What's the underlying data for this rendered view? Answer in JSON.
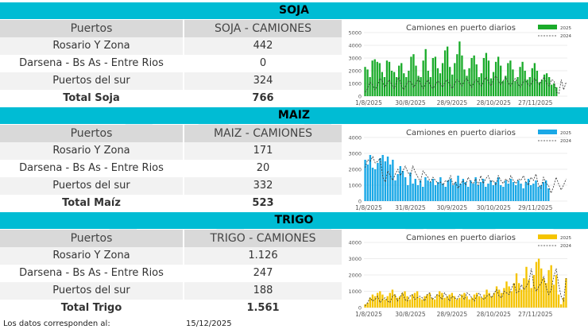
{
  "colors": {
    "band": "#00bcd4",
    "soja": "#1aab2a",
    "maiz": "#1aa8e6",
    "trigo": "#f5c400",
    "line2024": "#333333"
  },
  "sections": [
    {
      "title": "SOJA",
      "col_left": "Puertos",
      "col_right": "SOJA - CAMIONES",
      "rows": [
        {
          "label": "Rosario Y Zona",
          "value": "442"
        },
        {
          "label": "Darsena - Bs As - Entre Rios",
          "value": "0"
        },
        {
          "label": "Puertos del sur",
          "value": "324"
        }
      ],
      "total_label": "Total Soja",
      "total_value": "766"
    },
    {
      "title": "MAIZ",
      "col_left": "Puertos",
      "col_right": "MAIZ - CAMIONES",
      "rows": [
        {
          "label": "Rosario Y Zona",
          "value": "171"
        },
        {
          "label": "Darsena - Bs As - Entre Rios",
          "value": "20"
        },
        {
          "label": "Puertos del sur",
          "value": "332"
        }
      ],
      "total_label": "Total Maíz",
      "total_value": "523"
    },
    {
      "title": "TRIGO",
      "col_left": "Puertos",
      "col_right": "TRIGO - CAMIONES",
      "rows": [
        {
          "label": "Rosario Y Zona",
          "value": "1.126"
        },
        {
          "label": "Darsena - Bs As - Entre Rios",
          "value": "247"
        },
        {
          "label": "Puertos del sur",
          "value": "188"
        }
      ],
      "total_label": "Total Trigo",
      "total_value": "1.561"
    }
  ],
  "footer": {
    "label": "Los datos corresponden al:",
    "date": "15/12/2025"
  },
  "chart_data": [
    {
      "type": "bar",
      "title": "Camiones en puerto diarios",
      "x_ticks": [
        "1/8/2025",
        "30/8/2025",
        "28/9/2025",
        "28/10/2025",
        "27/11/2025"
      ],
      "y_ticks": [
        0,
        1000,
        2000,
        3000,
        4000,
        5000
      ],
      "ylim": [
        0,
        5000
      ],
      "grid": true,
      "legend": "top-right",
      "series": [
        {
          "name": "2025",
          "kind": "bar",
          "color": "#1aab2a",
          "values": [
            2300,
            2100,
            1500,
            2800,
            2900,
            2700,
            2600,
            1900,
            1500,
            2800,
            2700,
            2000,
            1900,
            1500,
            2400,
            2600,
            1800,
            1500,
            2000,
            3100,
            3300,
            2400,
            1600,
            1500,
            2800,
            3700,
            2000,
            1500,
            3000,
            3100,
            2200,
            1800,
            2600,
            3600,
            3900,
            2300,
            1700,
            2600,
            3300,
            4300,
            3200,
            2100,
            1600,
            2200,
            3000,
            3200,
            2500,
            1500,
            1800,
            3000,
            3400,
            2800,
            1400,
            1900,
            2700,
            3100,
            2400,
            1200,
            1600,
            2600,
            2800,
            2100,
            1200,
            1500,
            2300,
            2700,
            2000,
            1300,
            1500,
            2200,
            2600,
            2000,
            1100,
            1300,
            1700,
            1800,
            1500,
            900,
            1000,
            700
          ]
        },
        {
          "name": "2024",
          "kind": "line",
          "color": "#333333",
          "values": [
            300,
            600,
            1100,
            900,
            500,
            800,
            1400,
            1200,
            700,
            1000,
            1300,
            900,
            600,
            1100,
            1500,
            800,
            500,
            900,
            1200,
            1100,
            700,
            1000,
            1400,
            900,
            600,
            1000,
            1300,
            800,
            600,
            900,
            1200,
            1000,
            700,
            1100,
            1300,
            900,
            600,
            1000,
            1300,
            1100,
            800,
            1200,
            1400,
            1000,
            700,
            1100,
            1300,
            1000,
            800,
            1200,
            1500,
            1100,
            800,
            1300,
            1600,
            1200,
            900,
            1200,
            1500,
            1100,
            800,
            1100,
            1400,
            1000,
            700,
            1000,
            1300,
            1000,
            800,
            1100,
            1400,
            1100,
            900,
            1300,
            1500,
            1000,
            800,
            1300,
            1200,
            300,
            200,
            1300,
            500,
            1100
          ]
        }
      ]
    },
    {
      "type": "bar",
      "title": "Camiones en puerto diarios",
      "x_ticks": [
        "1/8/2025",
        "31/8/2025",
        "30/9/2025",
        "30/10/2025",
        "29/11/2025"
      ],
      "y_ticks": [
        0,
        1000,
        2000,
        3000,
        4000
      ],
      "ylim": [
        0,
        4000
      ],
      "grid": true,
      "legend": "top-right",
      "series": [
        {
          "name": "2025",
          "kind": "bar",
          "color": "#1aa8e6",
          "values": [
            2600,
            2300,
            2900,
            2100,
            2000,
            2400,
            2700,
            2900,
            2500,
            2800,
            2300,
            2600,
            1300,
            1700,
            2200,
            1900,
            1500,
            1000,
            1800,
            1100,
            1400,
            1000,
            1300,
            900,
            1500,
            1300,
            1200,
            1400,
            1000,
            1200,
            1500,
            1100,
            900,
            1300,
            1400,
            1000,
            1200,
            1600,
            1100,
            1400,
            1200,
            900,
            1300,
            1100,
            1500,
            1000,
            1200,
            1400,
            900,
            1100,
            1300,
            1000,
            1200,
            1500,
            1000,
            900,
            1300,
            1100,
            1400,
            1200,
            1000,
            1300,
            1100,
            800,
            1200,
            1400,
            1000,
            1100,
            1300,
            900,
            1000,
            1200,
            1300,
            800
          ]
        },
        {
          "name": "2024",
          "kind": "line",
          "color": "#333333",
          "values": [
            2100,
            2600,
            2500,
            2800,
            2400,
            2500,
            2700,
            1500,
            1200,
            1900,
            1600,
            1300,
            1700,
            2000,
            1600,
            1900,
            2200,
            1800,
            1600,
            2200,
            1800,
            1500,
            1200,
            1900,
            1700,
            1500,
            1200,
            1500,
            1300,
            1100,
            1200,
            1000,
            1300,
            1200,
            1600,
            1000,
            1200,
            800,
            1100,
            1300,
            1000,
            1500,
            1200,
            1100,
            1400,
            1000,
            1600,
            1100,
            1400,
            1600,
            1200,
            1300,
            1000,
            1600,
            1300,
            1100,
            1400,
            1200,
            1600,
            1300,
            1100,
            1400,
            1300,
            1600,
            1200,
            1000,
            1500,
            1300,
            1700,
            1000,
            800,
            1500,
            1100,
            1000,
            500,
            900,
            1500,
            1100,
            700,
            1000,
            1400
          ]
        }
      ]
    },
    {
      "type": "bar",
      "title": "Camiones en puerto diarios",
      "x_ticks": [
        "1/8/2025",
        "30/8/2025",
        "28/9/2025",
        "28/10/2025",
        "27/11/2025"
      ],
      "y_ticks": [
        0,
        1000,
        2000,
        3000,
        4000
      ],
      "ylim": [
        0,
        4000
      ],
      "grid": true,
      "legend": "top-right",
      "series": [
        {
          "name": "2025",
          "kind": "bar",
          "color": "#f5c400",
          "values": [
            200,
            300,
            600,
            800,
            700,
            900,
            1000,
            800,
            500,
            700,
            900,
            1100,
            800,
            600,
            700,
            900,
            1000,
            700,
            500,
            800,
            900,
            1000,
            600,
            500,
            700,
            800,
            900,
            600,
            500,
            800,
            1000,
            900,
            600,
            700,
            800,
            900,
            700,
            500,
            600,
            800,
            900,
            700,
            500,
            600,
            800,
            900,
            700,
            600,
            800,
            1100,
            900,
            700,
            900,
            1300,
            1100,
            900,
            1200,
            1600,
            1300,
            1000,
            1500,
            2100,
            1500,
            1100,
            1800,
            2500,
            1700,
            1200,
            2000,
            2800,
            3000,
            2400,
            1800,
            1500,
            2300,
            2600,
            1400,
            2000,
            800,
            200,
            600,
            1800
          ]
        },
        {
          "name": "2024",
          "kind": "line",
          "color": "#333333",
          "values": [
            100,
            300,
            600,
            400,
            500,
            700,
            300,
            500,
            600,
            400,
            300,
            700,
            800,
            400,
            600,
            900,
            500,
            400,
            700,
            800,
            500,
            600,
            700,
            600,
            400,
            800,
            900,
            500,
            600,
            800,
            700,
            500,
            900,
            700,
            400,
            700,
            600,
            500,
            800,
            700,
            500,
            900,
            800,
            600,
            400,
            700,
            900,
            600,
            500,
            700,
            800,
            600,
            900,
            1100,
            700,
            600,
            1000,
            900,
            800,
            1200,
            1500,
            900,
            1000,
            1400,
            1100,
            1300,
            1600,
            2400,
            1300,
            1000,
            1300,
            1500,
            1900,
            1200,
            800,
            1100,
            1900,
            2400,
            1400,
            700,
            400,
            1800
          ]
        }
      ]
    }
  ]
}
